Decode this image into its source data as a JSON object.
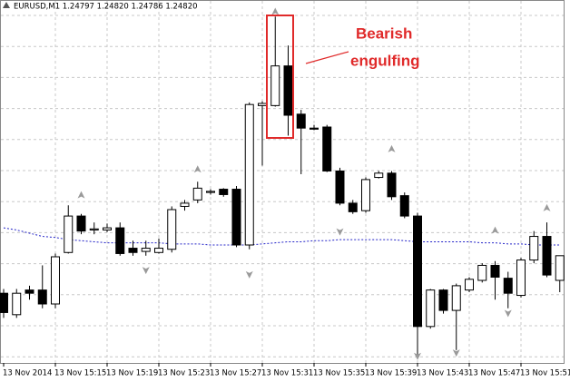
{
  "chart_data": {
    "type": "candlestick",
    "title": "EURUSD,M1 1.24797 1.24820 1.24786 1.24820",
    "categories": [
      "13 Nov 2014",
      null,
      null,
      null,
      "13 Nov 15:15",
      null,
      null,
      null,
      "13 Nov 15:19",
      null,
      null,
      null,
      "13 Nov 15:23",
      null,
      null,
      null,
      "13 Nov 15:27",
      null,
      null,
      null,
      "13 Nov 15:31",
      null,
      null,
      null,
      "13 Nov 15:35",
      null,
      null,
      null,
      "13 Nov 15:39",
      null,
      null,
      null,
      "13 Nov 15:43",
      null,
      null,
      null,
      "13 Nov 15:47",
      null,
      null,
      null,
      "13 Nov 15:51",
      null,
      null,
      null
    ],
    "open": [
      1.24785,
      1.24765,
      1.24788,
      1.24788,
      1.24775,
      1.24823,
      1.24857,
      1.24844,
      1.24844,
      1.24846,
      1.24827,
      1.24824,
      1.24823,
      1.24826,
      1.24866,
      1.24872,
      1.24879,
      1.24882,
      1.24882,
      1.2483,
      1.2496,
      1.2496,
      1.24997,
      1.24952,
      1.24939,
      1.2494,
      1.24899,
      1.24869,
      1.24862,
      1.24893,
      1.24897,
      1.24876,
      1.24857,
      1.24754,
      1.24788,
      1.24769,
      1.24788,
      1.24797,
      1.24811,
      1.24799,
      1.24783,
      1.24816,
      1.24838,
      1.24797
    ],
    "high": [
      1.24789,
      1.24789,
      1.24792,
      1.24811,
      1.24822,
      1.24867,
      1.24859,
      1.24851,
      1.2485,
      1.24851,
      1.24834,
      1.24834,
      1.24836,
      1.24866,
      1.24872,
      1.24889,
      1.24882,
      1.24883,
      1.24885,
      1.24963,
      1.24964,
      1.25043,
      1.25016,
      1.24956,
      1.24942,
      1.24942,
      1.24902,
      1.24872,
      1.24893,
      1.24899,
      1.24899,
      1.24879,
      1.2486,
      1.24789,
      1.24789,
      1.24794,
      1.248,
      1.24813,
      1.24815,
      1.24805,
      1.24818,
      1.24843,
      1.24851,
      1.2482
    ],
    "low": [
      1.24762,
      1.24762,
      1.24779,
      1.24771,
      1.24771,
      1.24822,
      1.2484,
      1.2484,
      1.24842,
      1.2482,
      1.2482,
      1.2482,
      1.24822,
      1.24823,
      1.24862,
      1.24869,
      1.24877,
      1.24875,
      1.24828,
      1.24826,
      1.24904,
      1.24959,
      1.24932,
      1.24896,
      1.24937,
      1.24898,
      1.24867,
      1.24859,
      1.2486,
      1.24892,
      1.24872,
      1.24855,
      1.24728,
      1.24752,
      1.24766,
      1.24732,
      1.24786,
      1.24795,
      1.24779,
      1.24771,
      1.24781,
      1.24813,
      1.248,
      1.24786
    ],
    "close": [
      1.24767,
      1.24785,
      1.24785,
      1.24775,
      1.24819,
      1.24857,
      1.24843,
      1.24845,
      1.24846,
      1.24822,
      1.24823,
      1.24827,
      1.24827,
      1.24863,
      1.24869,
      1.24883,
      1.2488,
      1.24877,
      1.2483,
      1.24961,
      1.24962,
      1.24997,
      1.24951,
      1.24939,
      1.24938,
      1.24899,
      1.24869,
      1.24861,
      1.24891,
      1.24897,
      1.24875,
      1.24857,
      1.24754,
      1.24788,
      1.24769,
      1.24792,
      1.24798,
      1.24811,
      1.248,
      1.24785,
      1.24816,
      1.24838,
      1.24802,
      1.2482
    ],
    "up_color": "#ffffff",
    "down_color": "#000000",
    "moving_average": {
      "color": "#2424c8",
      "values": [
        1.24846,
        1.24844,
        1.24841,
        1.24838,
        1.24837,
        1.24835,
        1.24834,
        1.24833,
        1.24832,
        1.24832,
        1.24832,
        1.24832,
        1.24832,
        1.24831,
        1.24831,
        1.24831,
        1.2483,
        1.2483,
        1.2483,
        1.2483,
        1.24831,
        1.24832,
        1.24833,
        1.24833,
        1.24834,
        1.24834,
        1.24835,
        1.24835,
        1.24835,
        1.24835,
        1.24835,
        1.24834,
        1.24833,
        1.24833,
        1.24833,
        1.24833,
        1.24833,
        1.24832,
        1.24832,
        1.24831,
        1.24831,
        1.2483,
        1.2483,
        1.2483
      ]
    },
    "fractal_color": "#9a9a9a",
    "fractal_up": [
      null,
      null,
      null,
      null,
      null,
      null,
      1.24876,
      null,
      null,
      null,
      null,
      null,
      null,
      null,
      null,
      1.249,
      null,
      null,
      null,
      null,
      null,
      1.25047,
      null,
      null,
      null,
      null,
      null,
      null,
      null,
      null,
      1.24919,
      null,
      null,
      null,
      null,
      null,
      null,
      null,
      1.24843,
      null,
      null,
      null,
      1.24864,
      null
    ],
    "fractal_down": [
      null,
      null,
      null,
      null,
      null,
      null,
      null,
      null,
      null,
      null,
      null,
      1.24807,
      null,
      null,
      null,
      null,
      null,
      null,
      null,
      1.24803,
      null,
      null,
      null,
      null,
      null,
      null,
      1.24843,
      null,
      null,
      null,
      null,
      null,
      1.24727,
      null,
      null,
      1.2473,
      null,
      null,
      null,
      1.24767,
      null,
      null,
      null,
      null
    ],
    "annotation": [
      "Bearish",
      "engulfing"
    ],
    "annotation_color": "#e02a2a",
    "ylim": [
      1.2472,
      1.2505
    ],
    "grid": true
  }
}
